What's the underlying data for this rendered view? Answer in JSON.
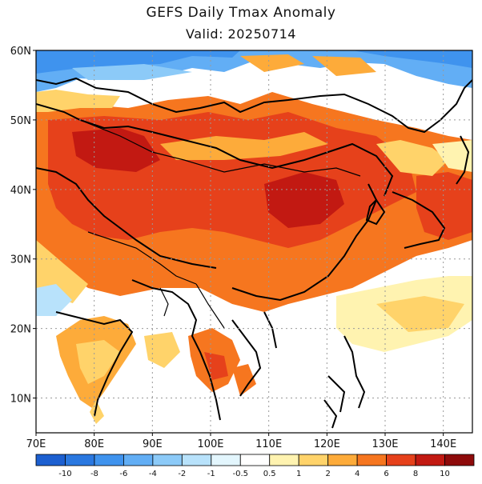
{
  "title": "GEFS Daily Tmax Anomaly",
  "subtitle": "Valid: 20250714",
  "map": {
    "lon_range": [
      70,
      145
    ],
    "lat_range": [
      5,
      60
    ],
    "lat_labels": [
      "60N",
      "50N",
      "40N",
      "30N",
      "20N",
      "10N"
    ],
    "lat_values": [
      60,
      50,
      40,
      30,
      20,
      10
    ],
    "lon_labels": [
      "70E",
      "80E",
      "90E",
      "100E",
      "110E",
      "120E",
      "130E",
      "140E"
    ],
    "lon_values": [
      70,
      80,
      90,
      100,
      110,
      120,
      130,
      140
    ],
    "grid": "dotted"
  },
  "colorbar": {
    "labels": [
      "-10",
      "-8",
      "-6",
      "-4",
      "-2",
      "-1",
      "-0.5",
      "0.5",
      "1",
      "2",
      "4",
      "6",
      "8",
      "10"
    ],
    "colors": [
      "#1c5fd0",
      "#2a78e0",
      "#3f93ee",
      "#62aef5",
      "#8ccaf8",
      "#b8e2fb",
      "#e3f6fd",
      "#ffffff",
      "#fff3b0",
      "#ffd36a",
      "#fdab3a",
      "#f6761f",
      "#e6411b",
      "#c21912",
      "#8e0a0a"
    ]
  },
  "colors": {
    "land_outline": "#000000",
    "grid": "#999999",
    "ocean_neutral": "#ffffff"
  }
}
